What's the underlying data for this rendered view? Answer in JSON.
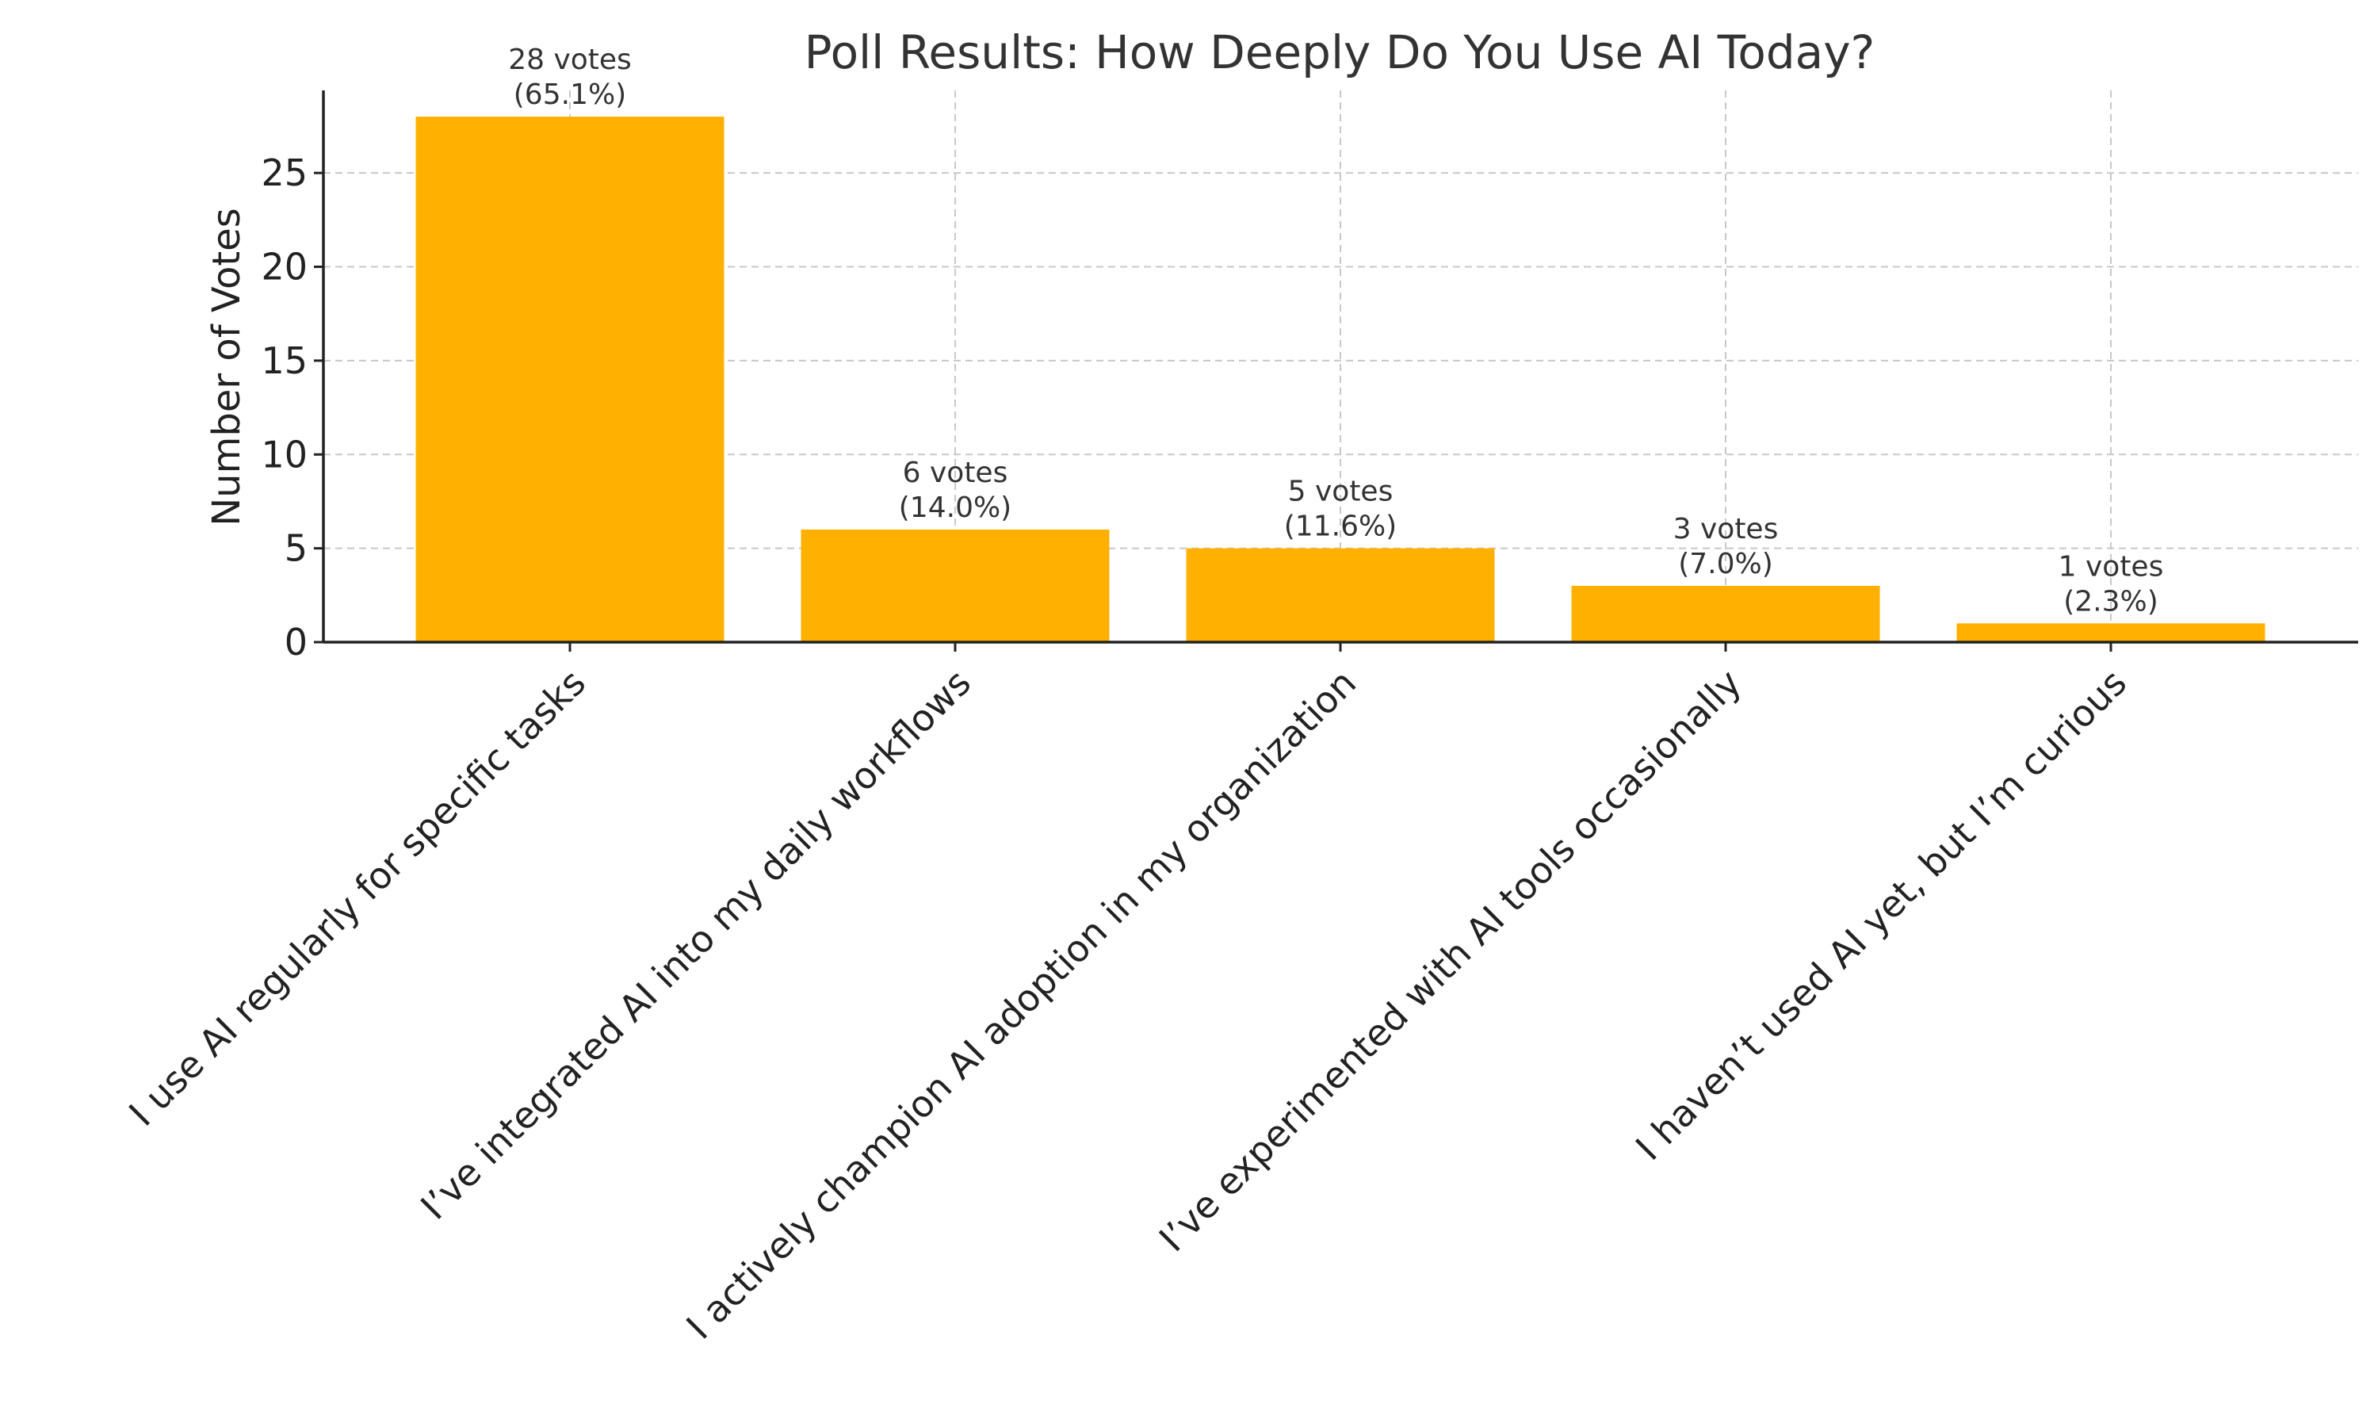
{
  "chart_data": {
    "type": "bar",
    "title": "Poll Results: How Deeply Do You Use AI Today?",
    "xlabel": "",
    "ylabel": "Number of Votes",
    "categories": [
      "I use AI regularly for specific tasks",
      "I’ve integrated AI into my daily workflows",
      "I actively champion AI adoption in my organization",
      "I’ve experimented with AI tools occasionally",
      "I haven’t used AI yet, but I’m curious"
    ],
    "values": [
      28,
      6,
      5,
      3,
      1
    ],
    "data_labels": [
      [
        "28 votes",
        "(65.1%)"
      ],
      [
        "6 votes",
        "(14.0%)"
      ],
      [
        "5 votes",
        "(11.6%)"
      ],
      [
        "3 votes",
        "(7.0%)"
      ],
      [
        "1 votes",
        "(2.3%)"
      ]
    ],
    "yticks": [
      0,
      5,
      10,
      15,
      20,
      25
    ],
    "ylim": [
      0,
      29.4
    ],
    "grid": true,
    "bar_color": "#FFB000"
  }
}
